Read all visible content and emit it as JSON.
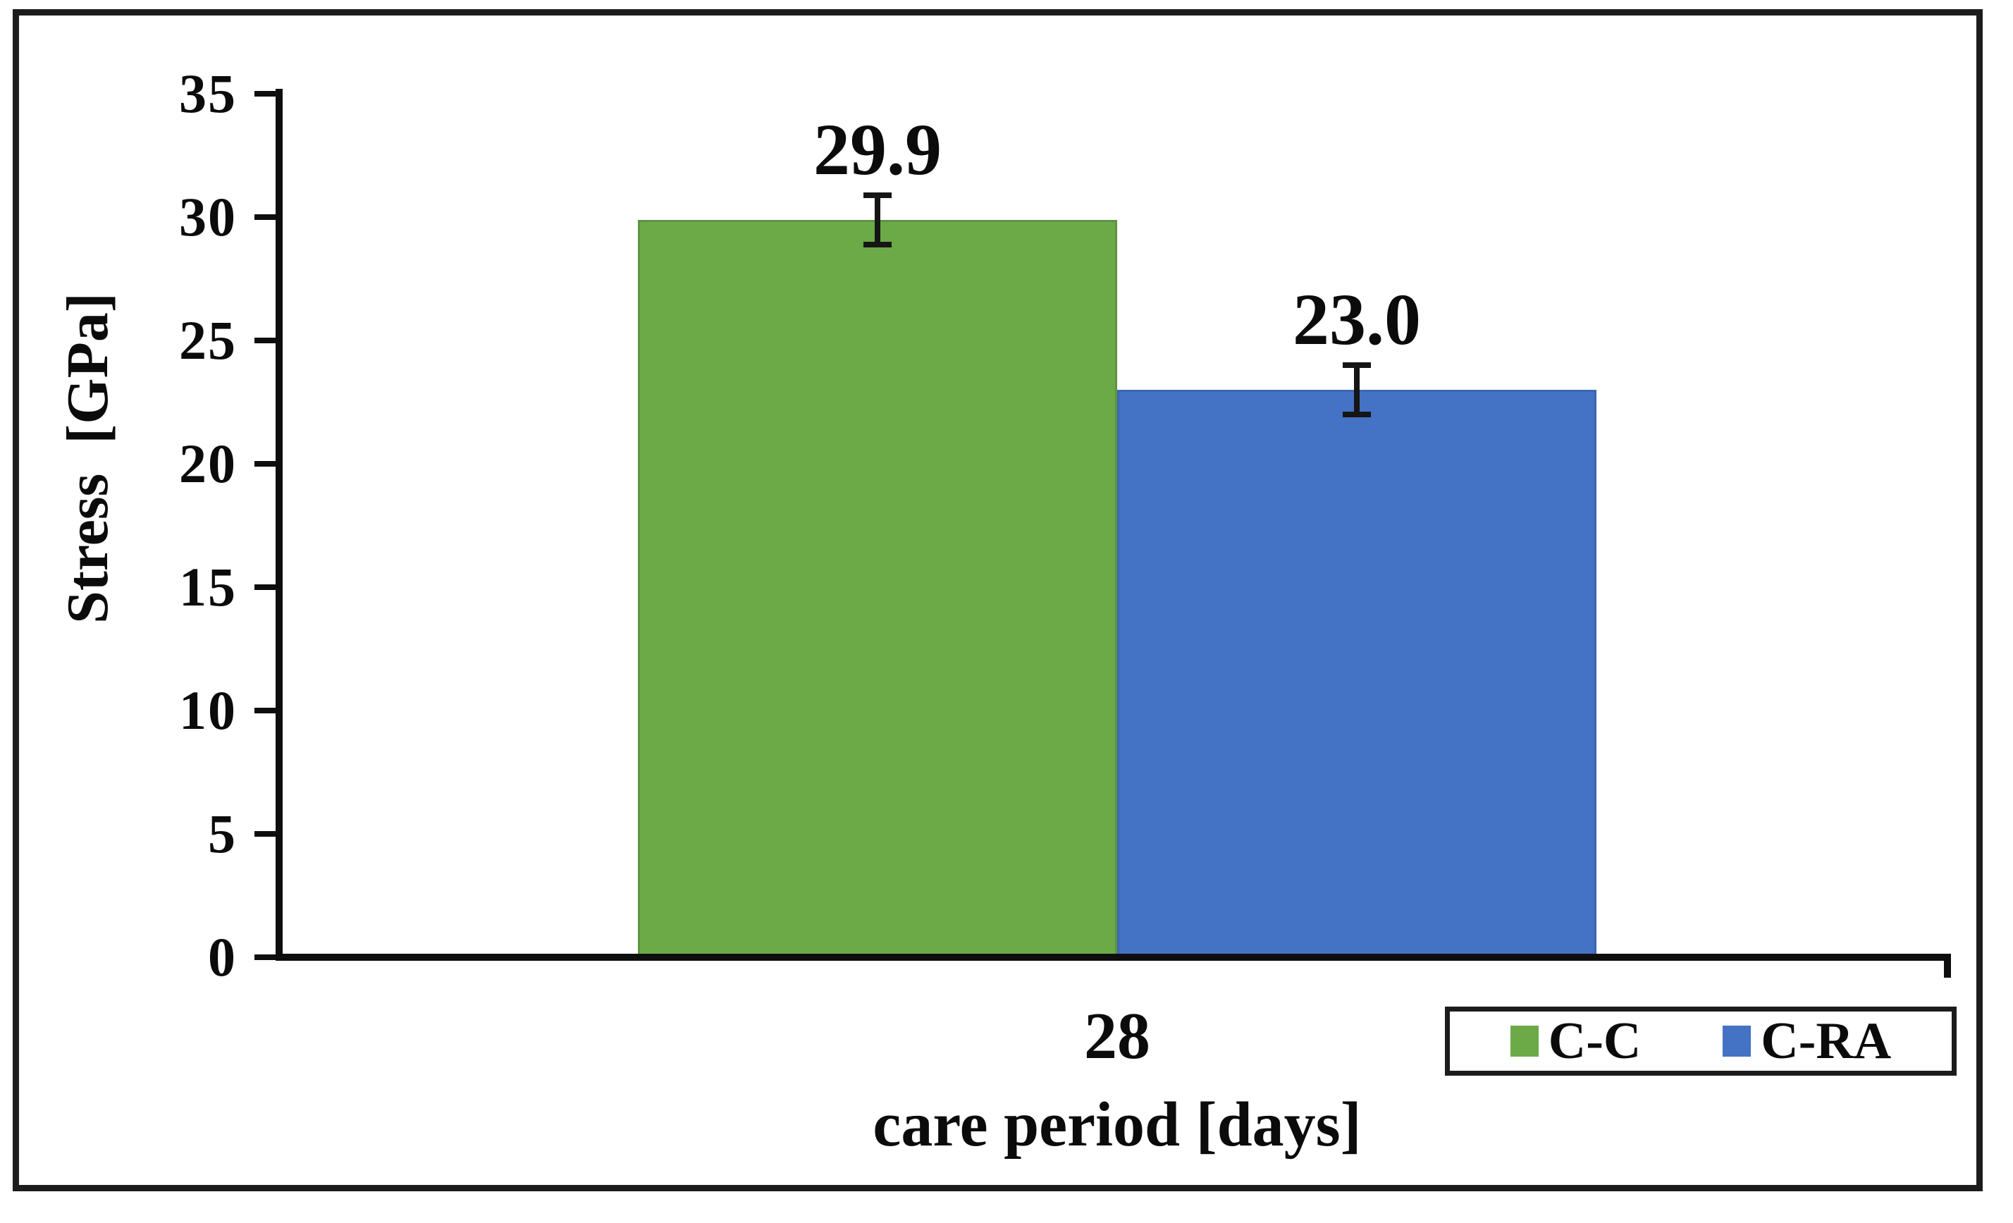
{
  "chart_data": {
    "type": "bar",
    "title": "",
    "categories": [
      "28"
    ],
    "series": [
      {
        "name": "C-C",
        "color": "#6CAA47",
        "border_color": "#5d9440",
        "values": [
          29.9
        ],
        "errors": [
          1.0
        ],
        "labels": [
          "29.9"
        ]
      },
      {
        "name": "C-RA",
        "color": "#4472C4",
        "border_color": "#3c66b2",
        "values": [
          23.0
        ],
        "errors": [
          1.0
        ],
        "labels": [
          "23.0"
        ]
      }
    ],
    "xlabel": "care period [days]",
    "ylabel": "Stress  [GPa]",
    "ylim": [
      0,
      35
    ],
    "yticks": [
      0,
      5,
      10,
      15,
      20,
      25,
      30,
      35
    ],
    "grid": false,
    "error_bar_color": "#151515",
    "axis_color": "#0e0e0e",
    "legend_position": "bottom-right-below-axis"
  },
  "legend": {
    "items": [
      {
        "label": "C-C",
        "color": "#6CAA47"
      },
      {
        "label": "C-RA",
        "color": "#4472C4"
      }
    ]
  }
}
